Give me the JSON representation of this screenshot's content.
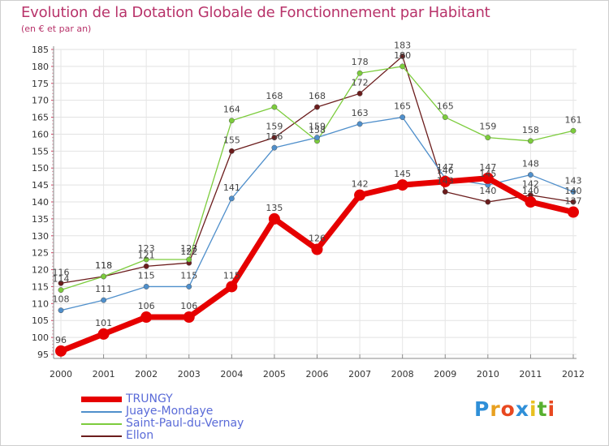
{
  "chart_data": {
    "type": "line",
    "title": "Evolution de la Dotation Globale de Fonctionnement par Habitant",
    "subtitle": "(en € et par an)",
    "xlabel": "",
    "ylabel": "",
    "categories": [
      "2000",
      "2001",
      "2002",
      "2003",
      "2004",
      "2005",
      "2006",
      "2007",
      "2008",
      "2009",
      "2010",
      "2011",
      "2012"
    ],
    "ylim": [
      95,
      185
    ],
    "ytick_step": 5,
    "grid": true,
    "legend_position": "bottom-left",
    "series": [
      {
        "name": "TRUNGY",
        "color": "#e60000",
        "values": [
          96,
          101,
          106,
          106,
          115,
          135,
          126,
          142,
          145,
          146,
          147,
          140,
          137
        ]
      },
      {
        "name": "Juaye-Mondaye",
        "color": "#4f8fcb",
        "values": [
          108,
          111,
          115,
          115,
          141,
          156,
          159,
          163,
          165,
          147,
          145,
          148,
          143
        ]
      },
      {
        "name": "Saint-Paul-du-Vernay",
        "color": "#7ccc3c",
        "values": [
          114,
          118,
          123,
          123,
          164,
          168,
          158,
          178,
          180,
          165,
          159,
          158,
          161
        ]
      },
      {
        "name": "Ellon",
        "color": "#6b1c1c",
        "values": [
          116,
          118,
          121,
          122,
          155,
          159,
          168,
          172,
          183,
          143,
          140,
          142,
          140
        ]
      }
    ]
  },
  "brand": {
    "name": "Proxiti",
    "letters": [
      "P",
      "r",
      "o",
      "x",
      "i",
      "t",
      "i"
    ],
    "colors": [
      "#2f8fd8",
      "#e8a020",
      "#e84820",
      "#2f8fd8",
      "#e8c020",
      "#58b030",
      "#e84820"
    ]
  }
}
